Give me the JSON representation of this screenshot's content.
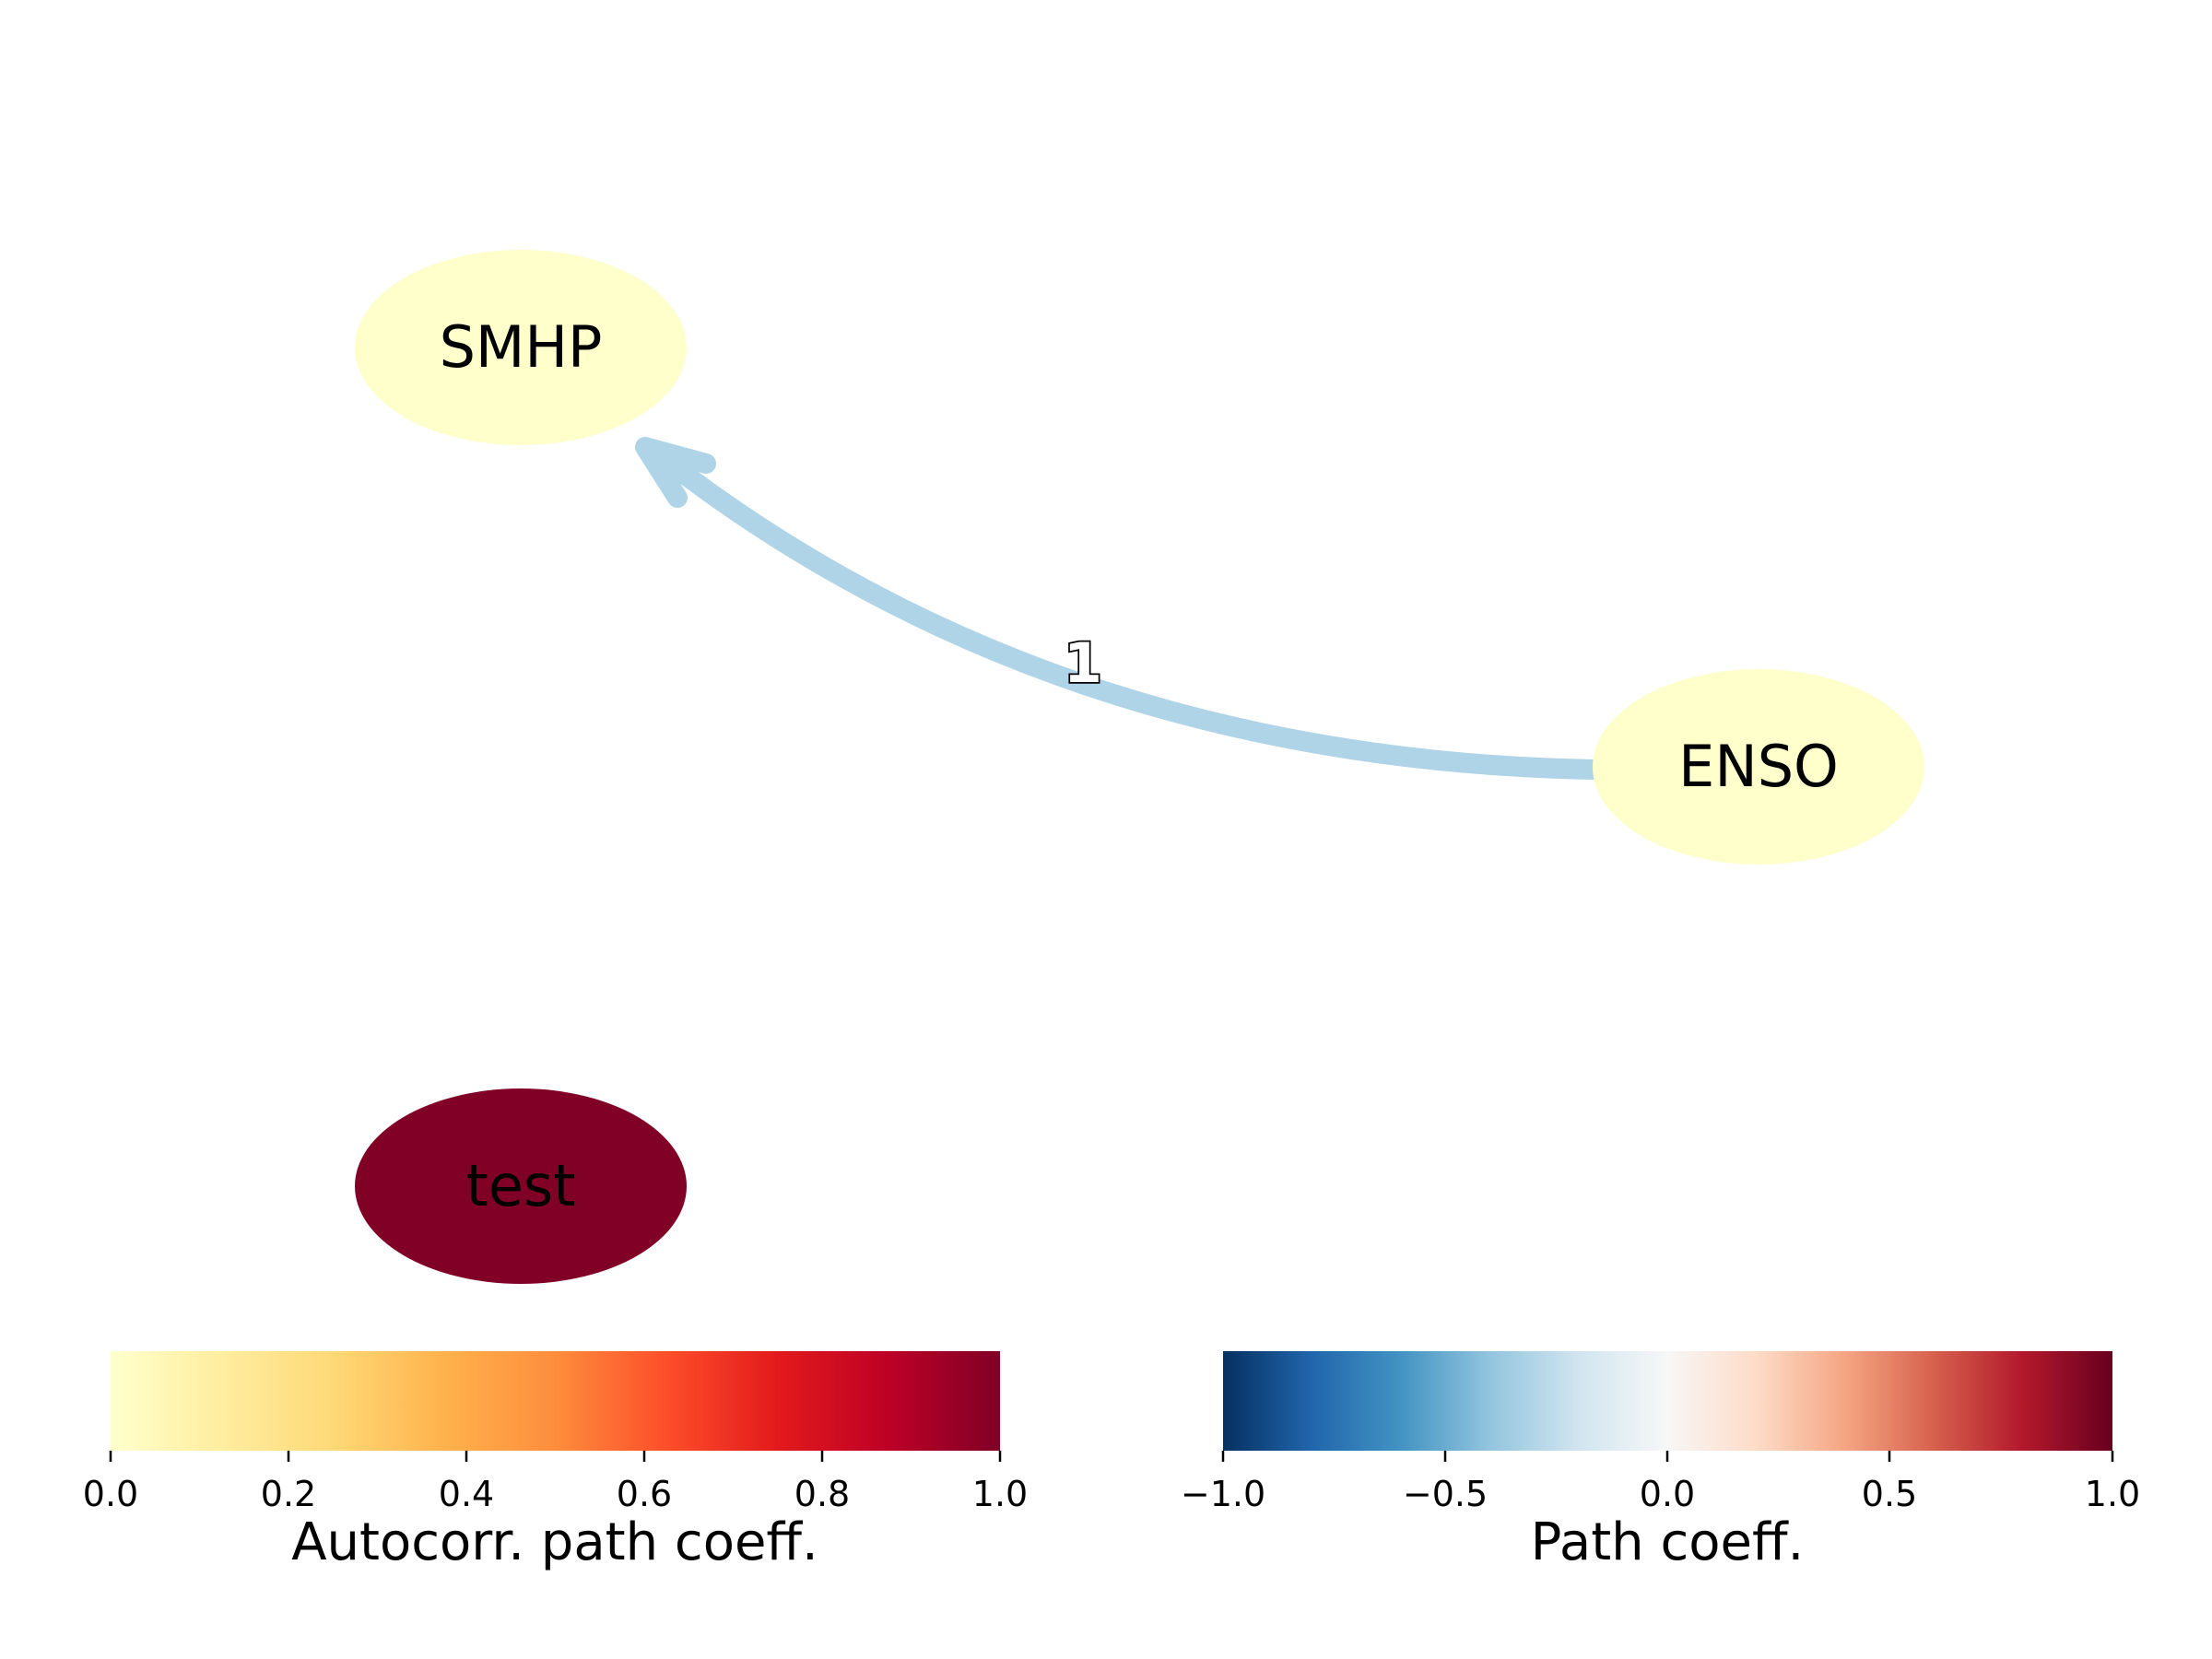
{
  "nodes": [
    {
      "id": "smhp",
      "label": "SMHP",
      "autocorr": 0.0,
      "color": "#ffffcc"
    },
    {
      "id": "enso",
      "label": "ENSO",
      "autocorr": 0.0,
      "color": "#ffffcc"
    },
    {
      "id": "test",
      "label": "test",
      "autocorr": 1.0,
      "color": "#800026"
    }
  ],
  "links": [
    {
      "source": "enso",
      "target": "smhp",
      "lag_label": "1",
      "color": "#b0d4e7"
    }
  ],
  "colorbars": {
    "autocorr": {
      "title": "Autocorr. path coeff.",
      "ticks": [
        "0.0",
        "0.2",
        "0.4",
        "0.6",
        "0.8",
        "1.0"
      ],
      "colormap": "YlOrRd",
      "stops": [
        "#ffffcc",
        "#ffeda0",
        "#fed976",
        "#feb24c",
        "#fd8d3c",
        "#fc4e2a",
        "#e31a1c",
        "#bd0026",
        "#800026"
      ]
    },
    "path": {
      "title": "Path coeff.",
      "ticks": [
        "−1.0",
        "−0.5",
        "0.0",
        "0.5",
        "1.0"
      ],
      "colormap": "RdBu_r",
      "stops": [
        "#053061",
        "#2166ac",
        "#4393c3",
        "#92c5de",
        "#d1e5f0",
        "#f7f7f7",
        "#fddbc7",
        "#f4a582",
        "#d6604d",
        "#b2182b",
        "#67001f"
      ]
    }
  }
}
